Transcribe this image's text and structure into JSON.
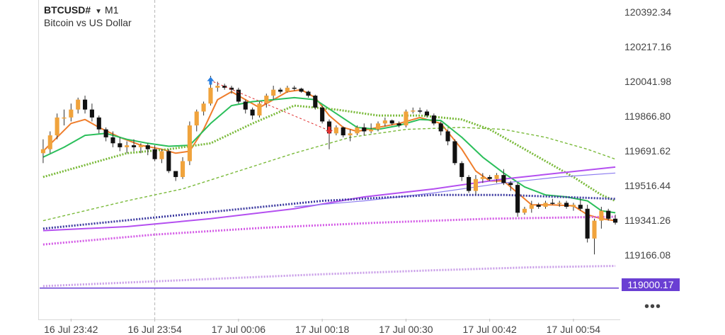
{
  "header": {
    "symbol": "BTCUSD#",
    "dropdown_arrow": "▼",
    "timeframe": "M1",
    "description": "Bitcoin vs US Dollar"
  },
  "current_price_tag": "119000.17",
  "more_menu": "•••",
  "colors": {
    "bull_candle": "#f0a33c",
    "bear_candle": "#111111",
    "fast_ma": "#ef7d2b",
    "mid_ma": "#2bbf5b",
    "slow_ma_dotted": "#7aba3a",
    "purple_ma": "#b44ff0",
    "navy_ma_dotted": "#3c3aa0",
    "pink_ma_dotted": "#d45be6",
    "price_line": "#6a3fd3",
    "buy_arrow": "#2a7fe0",
    "sell_arrow": "#e03030"
  },
  "chart_data": {
    "type": "candlestick",
    "symbol": "BTCUSD#",
    "timeframe": "M1",
    "y_axis": {
      "ticks": [
        "120392.34",
        "120217.16",
        "120041.98",
        "119866.80",
        "119691.62",
        "119516.44",
        "119341.26",
        "119166.08"
      ],
      "range": [
        118846,
        120452
      ]
    },
    "x_axis": {
      "ticks": [
        "16 Jul 23:42",
        "16 Jul 23:54",
        "17 Jul 00:06",
        "17 Jul 00:18",
        "17 Jul 00:30",
        "17 Jul 00:42",
        "17 Jul 00:54"
      ],
      "first_bar_time": "16 Jul 23:38",
      "bar_minutes": 1,
      "bars": 83
    },
    "ohlc": [
      [
        119680,
        119750,
        119630,
        119700
      ],
      [
        119700,
        119790,
        119680,
        119770
      ],
      [
        119770,
        119880,
        119750,
        119860
      ],
      [
        119860,
        119900,
        119820,
        119860
      ],
      [
        119860,
        119930,
        119840,
        119900
      ],
      [
        119900,
        119960,
        119880,
        119950
      ],
      [
        119950,
        119970,
        119880,
        119900
      ],
      [
        119900,
        119930,
        119840,
        119860
      ],
      [
        119860,
        119870,
        119780,
        119800
      ],
      [
        119800,
        119810,
        119740,
        119760
      ],
      [
        119760,
        119790,
        119710,
        119730
      ],
      [
        119730,
        119760,
        119690,
        119710
      ],
      [
        119710,
        119740,
        119680,
        119720
      ],
      [
        119720,
        119750,
        119690,
        119710
      ],
      [
        119710,
        119730,
        119680,
        119720
      ],
      [
        119720,
        119730,
        119670,
        119700
      ],
      [
        119700,
        119720,
        119640,
        119650
      ],
      [
        119650,
        119700,
        119630,
        119690
      ],
      [
        119690,
        119700,
        119580,
        119590
      ],
      [
        119590,
        119580,
        119540,
        119560
      ],
      [
        119560,
        119660,
        119550,
        119640
      ],
      [
        119640,
        119840,
        119620,
        119820
      ],
      [
        119820,
        119900,
        119790,
        119890
      ],
      [
        119890,
        119940,
        119870,
        119930
      ],
      [
        119930,
        120070,
        119920,
        120010
      ],
      [
        120010,
        120040,
        119990,
        120020
      ],
      [
        120020,
        120030,
        120000,
        120010
      ],
      [
        120010,
        120020,
        119980,
        120000
      ],
      [
        120000,
        120010,
        119930,
        119940
      ],
      [
        119940,
        119950,
        119880,
        119900
      ],
      [
        119900,
        119910,
        119850,
        119870
      ],
      [
        119870,
        119940,
        119860,
        119930
      ],
      [
        119930,
        119980,
        119910,
        119970
      ],
      [
        119970,
        120020,
        119950,
        120000
      ],
      [
        120000,
        120010,
        119980,
        119990
      ],
      [
        119990,
        120020,
        119985,
        120010
      ],
      [
        120010,
        120020,
        119995,
        120005
      ],
      [
        120005,
        120010,
        119985,
        119990
      ],
      [
        119990,
        119995,
        119960,
        119970
      ],
      [
        119970,
        119975,
        119900,
        119910
      ],
      [
        119910,
        119920,
        119830,
        119840
      ],
      [
        119840,
        119850,
        119700,
        119780
      ],
      [
        119780,
        119820,
        119770,
        119810
      ],
      [
        119810,
        119815,
        119760,
        119770
      ],
      [
        119770,
        119800,
        119740,
        119780
      ],
      [
        119780,
        119820,
        119770,
        119810
      ],
      [
        119810,
        119830,
        119770,
        119790
      ],
      [
        119790,
        119830,
        119780,
        119800
      ],
      [
        119800,
        119840,
        119790,
        119830
      ],
      [
        119830,
        119860,
        119815,
        119845
      ],
      [
        119845,
        119850,
        119820,
        119830
      ],
      [
        119830,
        119840,
        119810,
        119820
      ],
      [
        119820,
        119900,
        119810,
        119890
      ],
      [
        119890,
        119910,
        119880,
        119895
      ],
      [
        119895,
        119910,
        119880,
        119890
      ],
      [
        119890,
        119900,
        119860,
        119870
      ],
      [
        119870,
        119880,
        119820,
        119830
      ],
      [
        119830,
        119840,
        119770,
        119790
      ],
      [
        119790,
        119800,
        119720,
        119740
      ],
      [
        119740,
        119750,
        119620,
        119630
      ],
      [
        119630,
        119640,
        119540,
        119560
      ],
      [
        119560,
        119570,
        119480,
        119490
      ],
      [
        119490,
        119570,
        119470,
        119550
      ],
      [
        119550,
        119580,
        119530,
        119560
      ],
      [
        119560,
        119570,
        119540,
        119550
      ],
      [
        119550,
        119580,
        119530,
        119570
      ],
      [
        119570,
        119600,
        119520,
        119530
      ],
      [
        119530,
        119540,
        119490,
        119520
      ],
      [
        119520,
        119530,
        119360,
        119380
      ],
      [
        119380,
        119410,
        119370,
        119400
      ],
      [
        119400,
        119440,
        119380,
        119420
      ],
      [
        119420,
        119430,
        119400,
        119410
      ],
      [
        119410,
        119440,
        119400,
        119430
      ],
      [
        119430,
        119450,
        119420,
        119425
      ],
      [
        119425,
        119440,
        119410,
        119430
      ],
      [
        119430,
        119440,
        119400,
        119410
      ],
      [
        119410,
        119430,
        119390,
        119420
      ],
      [
        119420,
        119450,
        119390,
        119400
      ],
      [
        119400,
        119420,
        119230,
        119250
      ],
      [
        119250,
        119350,
        119170,
        119340
      ],
      [
        119340,
        119410,
        119300,
        119390
      ],
      [
        119390,
        119400,
        119340,
        119350
      ],
      [
        119350,
        119370,
        119320,
        119330
      ]
    ],
    "moving_averages": [
      {
        "style": "solid",
        "color": "#ef7d2b",
        "points": [
          [
            0,
            119690
          ],
          [
            2,
            119760
          ],
          [
            4,
            119830
          ],
          [
            6,
            119850
          ],
          [
            8,
            119810
          ],
          [
            11,
            119760
          ],
          [
            14,
            119720
          ],
          [
            17,
            119700
          ],
          [
            19,
            119680
          ],
          [
            21,
            119690
          ],
          [
            23,
            119800
          ],
          [
            25,
            119950
          ],
          [
            27,
            119990
          ],
          [
            29,
            119950
          ],
          [
            31,
            119910
          ],
          [
            33,
            119950
          ],
          [
            35,
            119990
          ],
          [
            37,
            120000
          ],
          [
            39,
            119960
          ],
          [
            41,
            119870
          ],
          [
            43,
            119810
          ],
          [
            45,
            119790
          ],
          [
            48,
            119810
          ],
          [
            51,
            119830
          ],
          [
            54,
            119860
          ],
          [
            57,
            119830
          ],
          [
            60,
            119700
          ],
          [
            62,
            119590
          ],
          [
            64,
            119540
          ],
          [
            66,
            119540
          ],
          [
            68,
            119480
          ],
          [
            70,
            119420
          ],
          [
            73,
            119420
          ],
          [
            76,
            119415
          ],
          [
            78,
            119370
          ],
          [
            80,
            119350
          ],
          [
            82,
            119340
          ]
        ]
      },
      {
        "style": "solid",
        "color": "#2bbf5b",
        "points": [
          [
            0,
            119660
          ],
          [
            3,
            119710
          ],
          [
            6,
            119770
          ],
          [
            9,
            119780
          ],
          [
            12,
            119750
          ],
          [
            15,
            119730
          ],
          [
            18,
            119715
          ],
          [
            21,
            119720
          ],
          [
            24,
            119830
          ],
          [
            27,
            119920
          ],
          [
            30,
            119940
          ],
          [
            33,
            119950
          ],
          [
            36,
            119960
          ],
          [
            39,
            119950
          ],
          [
            42,
            119880
          ],
          [
            45,
            119810
          ],
          [
            48,
            119800
          ],
          [
            51,
            119820
          ],
          [
            54,
            119850
          ],
          [
            57,
            119845
          ],
          [
            60,
            119760
          ],
          [
            63,
            119660
          ],
          [
            66,
            119580
          ],
          [
            69,
            119510
          ],
          [
            72,
            119470
          ],
          [
            75,
            119460
          ],
          [
            78,
            119440
          ],
          [
            80,
            119390
          ],
          [
            82,
            119380
          ]
        ]
      },
      {
        "style": "dotted",
        "color": "#7aba3a",
        "points": [
          [
            0,
            119560
          ],
          [
            6,
            119620
          ],
          [
            12,
            119680
          ],
          [
            18,
            119700
          ],
          [
            24,
            119730
          ],
          [
            30,
            119830
          ],
          [
            36,
            119920
          ],
          [
            42,
            119900
          ],
          [
            48,
            119870
          ],
          [
            54,
            119870
          ],
          [
            60,
            119850
          ],
          [
            64,
            119800
          ],
          [
            68,
            119720
          ],
          [
            72,
            119640
          ],
          [
            76,
            119560
          ],
          [
            80,
            119470
          ],
          [
            82,
            119440
          ]
        ]
      },
      {
        "style": "dashed",
        "color": "#7aba3a",
        "points": [
          [
            0,
            119340
          ],
          [
            12,
            119440
          ],
          [
            20,
            119500
          ],
          [
            28,
            119590
          ],
          [
            36,
            119680
          ],
          [
            44,
            119760
          ],
          [
            52,
            119800
          ],
          [
            60,
            119810
          ],
          [
            66,
            119800
          ],
          [
            72,
            119760
          ],
          [
            78,
            119700
          ],
          [
            82,
            119650
          ]
        ]
      },
      {
        "style": "solid",
        "color": "#b44ff0",
        "points": [
          [
            0,
            119290
          ],
          [
            12,
            119310
          ],
          [
            24,
            119350
          ],
          [
            36,
            119400
          ],
          [
            46,
            119460
          ],
          [
            56,
            119500
          ],
          [
            66,
            119550
          ],
          [
            74,
            119580
          ],
          [
            82,
            119610
          ]
        ]
      },
      {
        "style": "thin",
        "color": "#8c7cf0",
        "points": [
          [
            36,
            119410
          ],
          [
            46,
            119440
          ],
          [
            56,
            119480
          ],
          [
            66,
            119530
          ],
          [
            74,
            119560
          ],
          [
            82,
            119580
          ]
        ]
      },
      {
        "style": "dotted",
        "color": "#3c3aa0",
        "points": [
          [
            0,
            119300
          ],
          [
            20,
            119370
          ],
          [
            40,
            119440
          ],
          [
            56,
            119470
          ],
          [
            66,
            119470
          ],
          [
            74,
            119460
          ],
          [
            82,
            119450
          ]
        ]
      },
      {
        "style": "dotted",
        "color": "#d45be6",
        "points": [
          [
            0,
            119220
          ],
          [
            16,
            119270
          ],
          [
            32,
            119305
          ],
          [
            48,
            119330
          ],
          [
            64,
            119350
          ],
          [
            82,
            119360
          ]
        ]
      },
      {
        "style": "dotted",
        "color": "#c99de8",
        "points": [
          [
            0,
            119010
          ],
          [
            20,
            119040
          ],
          [
            40,
            119070
          ],
          [
            56,
            119090
          ],
          [
            70,
            119105
          ],
          [
            82,
            119112
          ]
        ]
      }
    ],
    "current_price": 119000.17,
    "buy_marker": {
      "bar": 24,
      "price": 120040
    },
    "sell_marker": {
      "bar": 41,
      "price": 119800
    }
  }
}
